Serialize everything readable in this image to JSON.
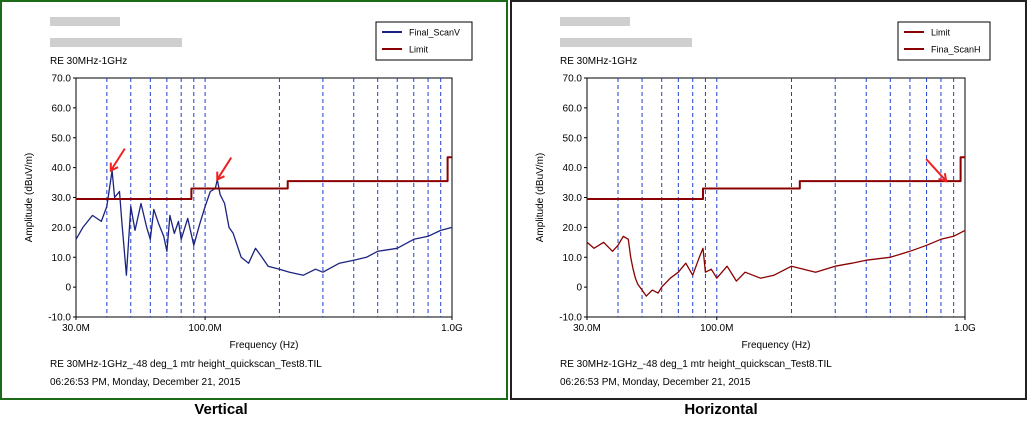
{
  "captions": {
    "left": "Vertical",
    "right": "Horizontal"
  },
  "chart_data": [
    {
      "type": "line",
      "subtitle": "RE 30MHz-1GHz",
      "xlabel": "Frequency (Hz)",
      "ylabel": "Amplitude (dBuV/m)",
      "xscale": "log",
      "xlim": [
        30,
        1000
      ],
      "ylim": [
        -10,
        70
      ],
      "yticks": [
        "-10.0",
        "0",
        "10.0",
        "20.0",
        "30.0",
        "40.0",
        "50.0",
        "60.0",
        "70.0"
      ],
      "xticks": [
        {
          "value": 30,
          "label": "30.0M"
        },
        {
          "value": 100,
          "label": "100.0M"
        },
        {
          "value": 1000,
          "label": "1.0G"
        }
      ],
      "legend_position": "top-right",
      "footer_line1": "RE 30MHz-1GHz_-48 deg_1 mtr height_quickscan_Test8.TIL",
      "footer_line2": "06:26:53 PM, Monday, December 21, 2015",
      "frame_color": "#1b6b1b",
      "series": [
        {
          "name": "Final_ScanV",
          "color": "#1a237e",
          "x": [
            30,
            32,
            35,
            38,
            40,
            42,
            43,
            45,
            46,
            48,
            50,
            52,
            55,
            58,
            60,
            62,
            65,
            68,
            70,
            72,
            75,
            78,
            80,
            85,
            90,
            95,
            100,
            105,
            110,
            112,
            115,
            120,
            125,
            130,
            140,
            150,
            160,
            170,
            180,
            200,
            220,
            250,
            280,
            300,
            350,
            400,
            450,
            500,
            600,
            700,
            800,
            900,
            1000
          ],
          "y": [
            16,
            20,
            24,
            22,
            27,
            39,
            30,
            32,
            22,
            4,
            27,
            19,
            28,
            20,
            16,
            26,
            21,
            17,
            12,
            24,
            18,
            22,
            16,
            23,
            14,
            21,
            27,
            32,
            33,
            36,
            31,
            28,
            20,
            18,
            10,
            8,
            13,
            10,
            7,
            6,
            5,
            4,
            6,
            5,
            8,
            9,
            10,
            12,
            13,
            16,
            17,
            19,
            20
          ]
        },
        {
          "name": "Limit",
          "color": "#8b0000",
          "x": [
            30,
            88,
            88,
            216,
            216,
            960,
            960,
            1000
          ],
          "y": [
            29.5,
            29.5,
            33,
            33,
            35.5,
            35.5,
            43.5,
            43.5
          ]
        }
      ],
      "markers": [
        {
          "x": 41.5,
          "y": 39
        },
        {
          "x": 112,
          "y": 36
        }
      ],
      "marker_color": "#ee2222"
    },
    {
      "type": "line",
      "subtitle": "RE 30MHz-1GHz",
      "xlabel": "Frequency (Hz)",
      "ylabel": "Amplitude (dBuV/m)",
      "xscale": "log",
      "xlim": [
        30,
        1000
      ],
      "ylim": [
        -10,
        70
      ],
      "yticks": [
        "-10.0",
        "0",
        "10.0",
        "20.0",
        "30.0",
        "40.0",
        "50.0",
        "60.0",
        "70.0"
      ],
      "xticks": [
        {
          "value": 30,
          "label": "30.0M"
        },
        {
          "value": 100,
          "label": "100.0M"
        },
        {
          "value": 1000,
          "label": "1.0G"
        }
      ],
      "legend_position": "top-right",
      "footer_line1": "RE 30MHz-1GHz_-48 deg_1 mtr height_quickscan_Test8.TIL",
      "footer_line2": "06:26:53 PM, Monday, December 21, 2015",
      "frame_color": "#222222",
      "series": [
        {
          "name": "Limit",
          "color": "#8b0000",
          "x": [
            30,
            88,
            88,
            216,
            216,
            960,
            960,
            1000
          ],
          "y": [
            29.5,
            29.5,
            33,
            33,
            35.5,
            35.5,
            43.5,
            43.5
          ]
        },
        {
          "name": "Fina_ScanH",
          "color": "#8b0000",
          "x": [
            30,
            32,
            35,
            38,
            40,
            42,
            44,
            45,
            46,
            47,
            48,
            50,
            52,
            55,
            58,
            60,
            65,
            70,
            75,
            80,
            85,
            88,
            90,
            95,
            100,
            110,
            120,
            130,
            150,
            170,
            200,
            250,
            300,
            350,
            400,
            500,
            600,
            700,
            800,
            900,
            1000
          ],
          "y": [
            15,
            13,
            15,
            12,
            14,
            17,
            16,
            10,
            6,
            3,
            1,
            -1,
            -3,
            -1,
            -2,
            0,
            3,
            5,
            8,
            4,
            10,
            13,
            5,
            6,
            3,
            7,
            2,
            5,
            3,
            4,
            7,
            5,
            7,
            8,
            9,
            10,
            12,
            14,
            16,
            17,
            19
          ]
        }
      ],
      "markers": [
        {
          "x": 840,
          "y": 35.5
        }
      ],
      "marker_color": "#ee2222"
    }
  ]
}
